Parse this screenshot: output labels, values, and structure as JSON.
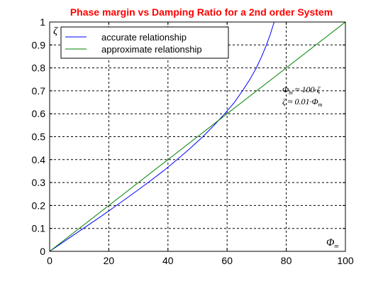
{
  "chart_data": {
    "type": "line",
    "title": "Phase margin vs Damping Ratio for a 2nd order System",
    "xlabel": "Φm",
    "ylabel": "ζ",
    "xlim": [
      0,
      100
    ],
    "ylim": [
      0,
      1
    ],
    "xticks": [
      "0",
      "20",
      "40",
      "60",
      "80",
      "100"
    ],
    "yticks": [
      "0",
      "0.1",
      "0.2",
      "0.3",
      "0.4",
      "0.5",
      "0.6",
      "0.7",
      "0.8",
      "0.9",
      "1"
    ],
    "grid": true,
    "legend": "top-left",
    "series": [
      {
        "name": "accurate relationship",
        "color": "#0000ff",
        "x": [
          0,
          5.7,
          11.4,
          17.1,
          22.6,
          28.0,
          33.3,
          38.4,
          43.1,
          47.6,
          51.8,
          55.6,
          59.2,
          62.5,
          65.2,
          67.7,
          69.9,
          71.7,
          73.3,
          74.7,
          75.9
        ],
        "y": [
          0,
          0.05,
          0.1,
          0.15,
          0.2,
          0.25,
          0.3,
          0.35,
          0.4,
          0.45,
          0.5,
          0.55,
          0.6,
          0.65,
          0.7,
          0.75,
          0.8,
          0.85,
          0.9,
          0.95,
          1.0
        ]
      },
      {
        "name": "approximate relationship",
        "color": "#008000",
        "x": [
          0,
          100
        ],
        "y": [
          0,
          1
        ]
      }
    ],
    "annotations": [
      {
        "base": "Φ",
        "sub": "m",
        "rest": " ≈ 100·ζ"
      },
      {
        "base": "ζ ≈ 0.01·Φ",
        "sub": "m",
        "rest": ""
      }
    ],
    "title_color": "#ff0000"
  }
}
